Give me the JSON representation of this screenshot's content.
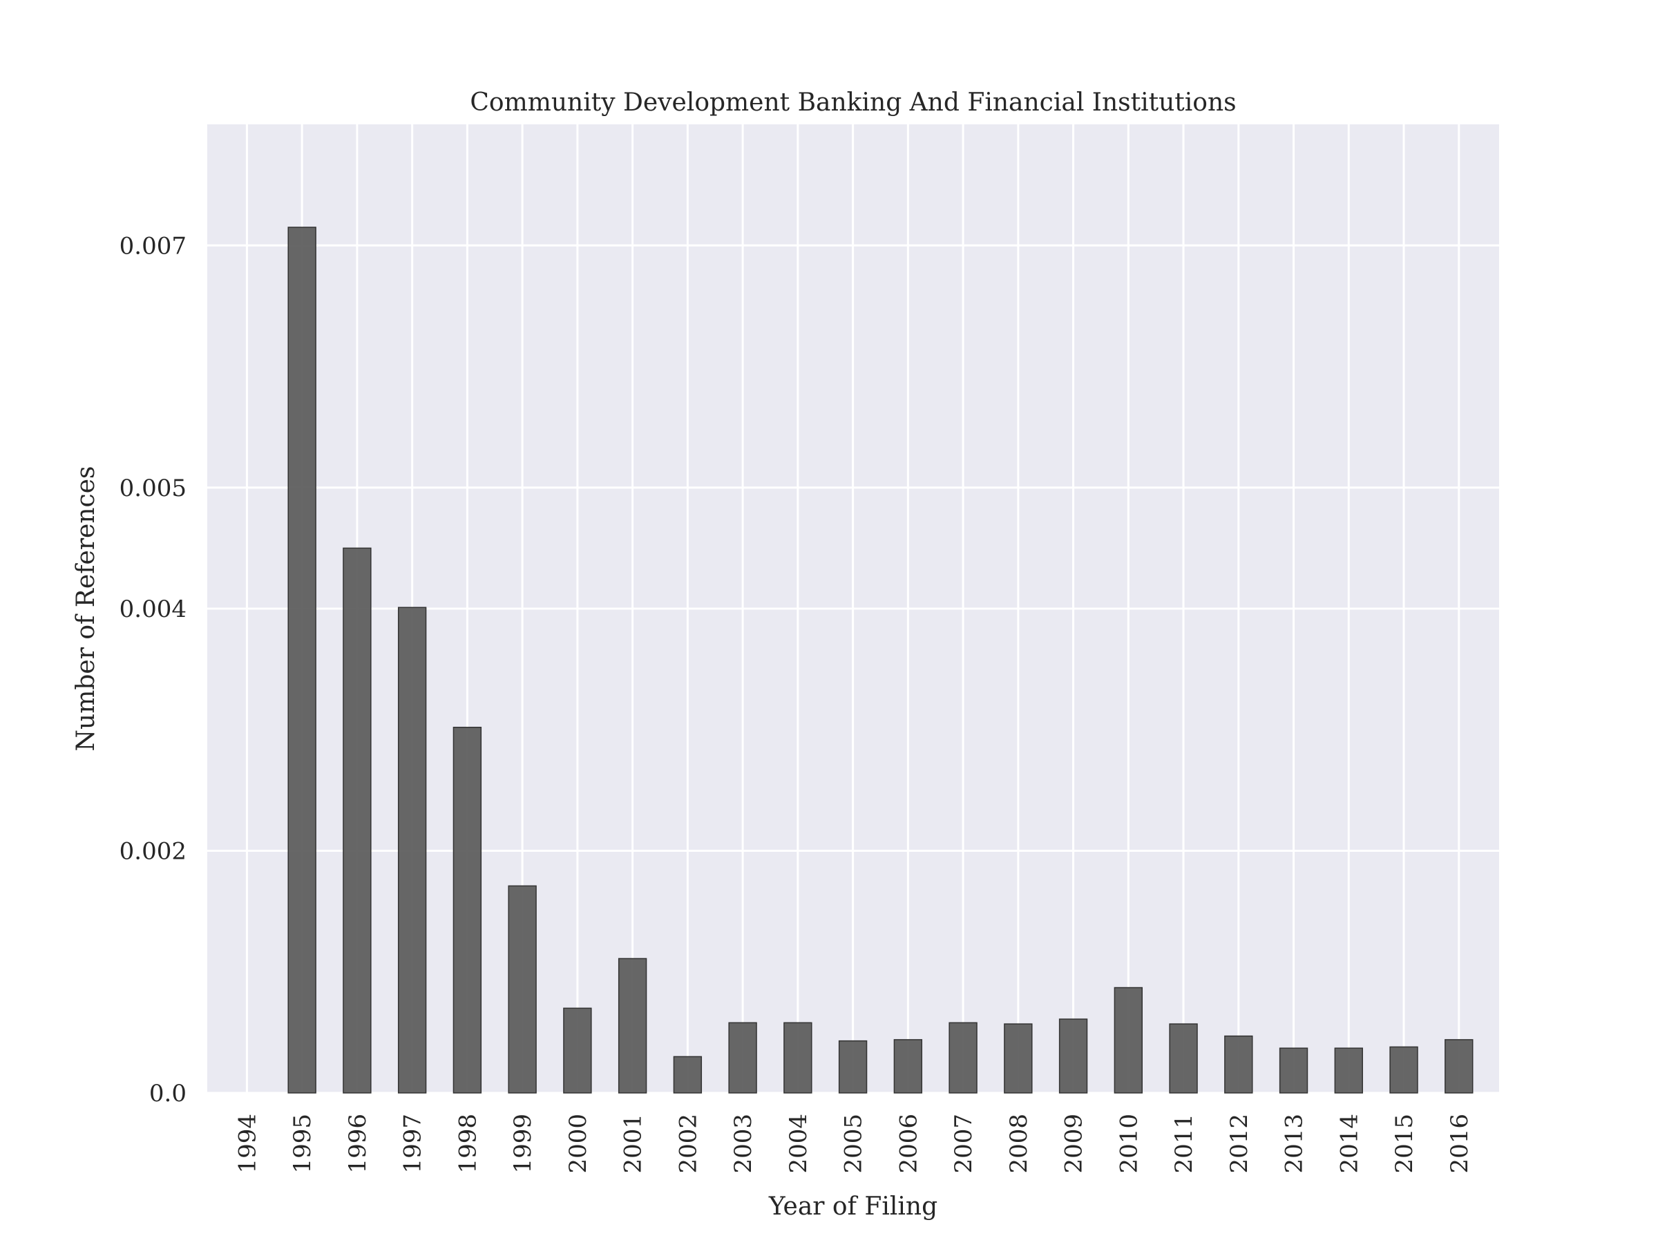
{
  "chart_data": {
    "type": "bar",
    "title": "Community Development Banking And Financial Institutions",
    "xlabel": "Year of Filing",
    "ylabel": "Number of References",
    "categories": [
      "1994",
      "1995",
      "1996",
      "1997",
      "1998",
      "1999",
      "2000",
      "2001",
      "2002",
      "2003",
      "2004",
      "2005",
      "2006",
      "2007",
      "2008",
      "2009",
      "2010",
      "2011",
      "2012",
      "2013",
      "2014",
      "2015",
      "2016"
    ],
    "values": [
      0.0,
      0.00715,
      0.0045,
      0.00401,
      0.00302,
      0.00171,
      0.0007,
      0.00111,
      0.0003,
      0.00058,
      0.00058,
      0.00043,
      0.00044,
      0.00058,
      0.00057,
      0.00061,
      0.00087,
      0.00057,
      0.00047,
      0.00037,
      0.00037,
      0.00038,
      0.00044
    ],
    "ylim": [
      0,
      0.008
    ],
    "yticks": [
      0.0,
      0.002,
      0.004,
      0.005,
      0.007
    ],
    "ytick_labels": [
      "0.0",
      "0.002",
      "0.004",
      "0.005",
      "0.007"
    ],
    "grid": true,
    "legend": "none",
    "colors": {
      "plot_background": "#eaeaf2",
      "grid": "#ffffff",
      "bar_fill": "#5a5a5a",
      "bar_edge": "#333333"
    }
  }
}
